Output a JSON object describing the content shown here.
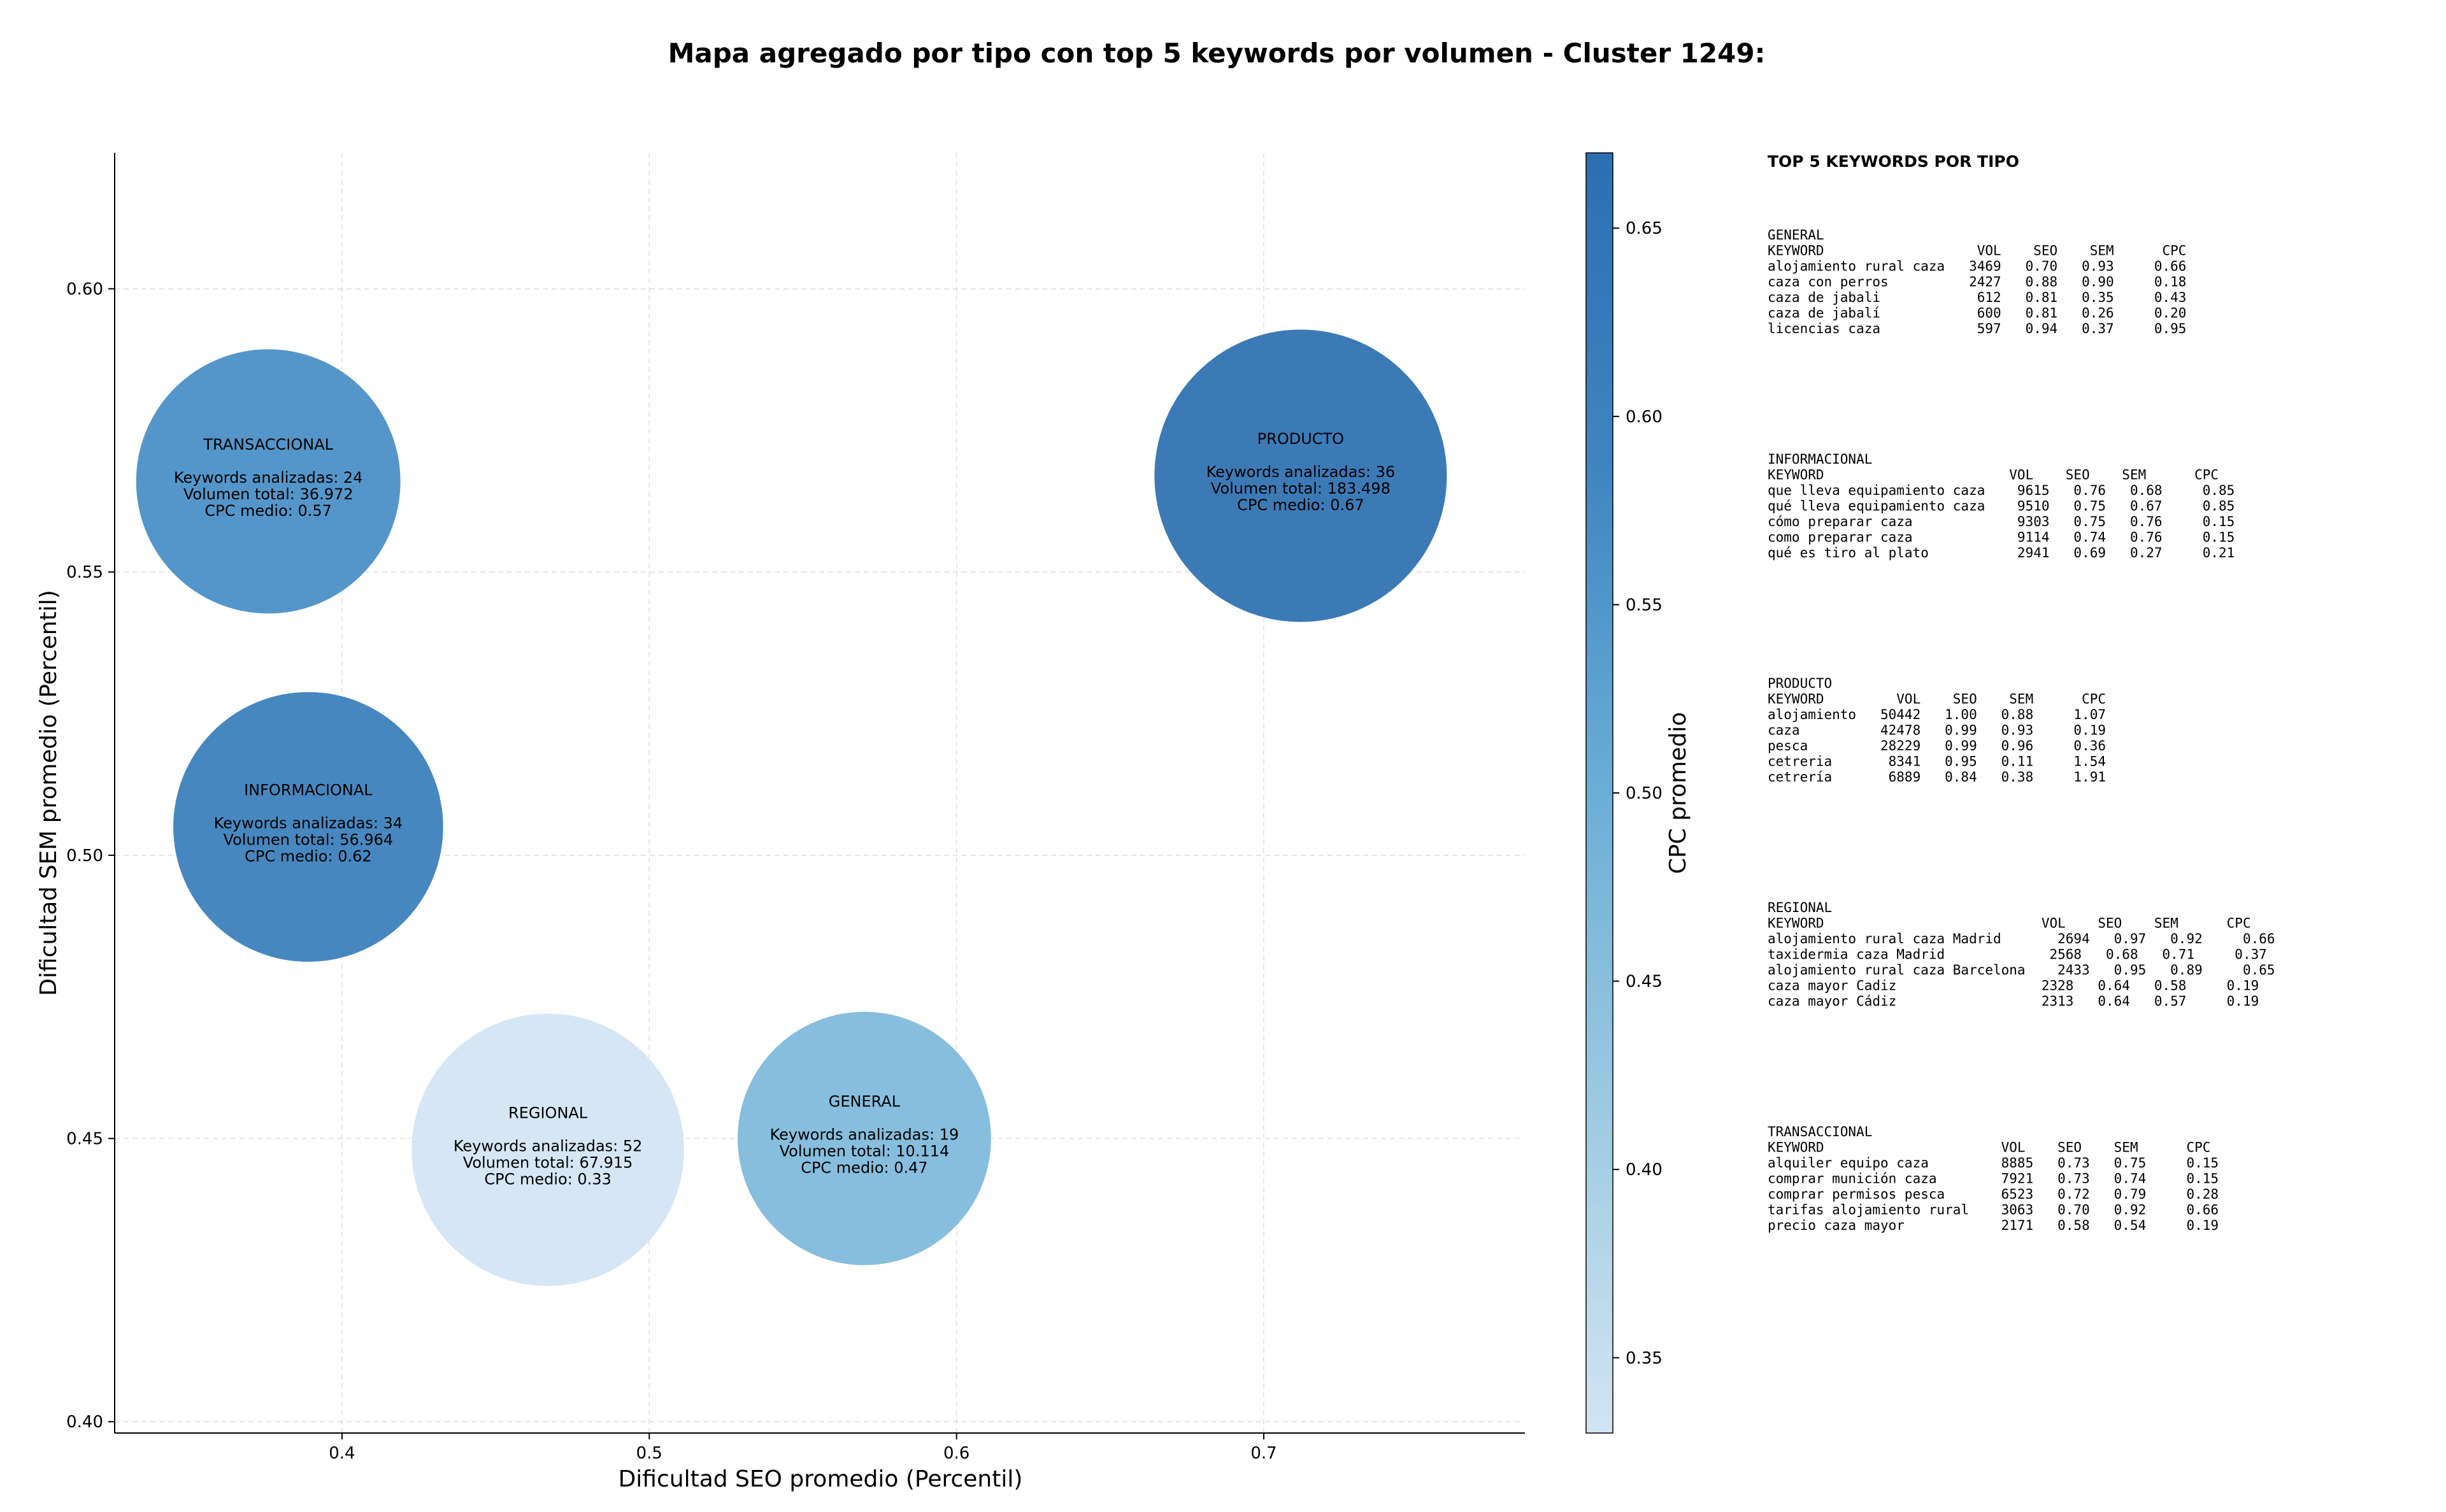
{
  "chart_data": {
    "type": "scatter",
    "title": "Mapa agregado por tipo con top 5 keywords por volumen - Cluster 1249:",
    "xlabel": "Dificultad SEO promedio (Percentil)",
    "ylabel": "Dificultad SEM promedio (Percentil)",
    "xlim": [
      0.326,
      0.785
    ],
    "ylim": [
      0.398,
      0.624
    ],
    "xticks": [
      0.4,
      0.5,
      0.6,
      0.7
    ],
    "xtick_labels": [
      "0.4",
      "0.5",
      "0.6",
      "0.7"
    ],
    "yticks": [
      0.4,
      0.45,
      0.5,
      0.55,
      0.6
    ],
    "ytick_labels": [
      "0.40",
      "0.45",
      "0.50",
      "0.55",
      "0.60"
    ],
    "grid": true,
    "colorbar": {
      "label": "CPC promedio",
      "min": 0.33,
      "max": 0.67,
      "ticks": [
        0.35,
        0.4,
        0.45,
        0.5,
        0.55,
        0.6,
        0.65
      ],
      "tick_labels": [
        "0.35",
        "0.40",
        "0.45",
        "0.50",
        "0.55",
        "0.60",
        "0.65"
      ],
      "colors": [
        "#d3e4f3",
        "#9ecae1",
        "#6baed6",
        "#3f86c1",
        "#2b6fb0"
      ]
    },
    "points": [
      {
        "name": "TRANSACCIONAL",
        "x": 0.376,
        "y": 0.566,
        "keywords": 24,
        "volume": 36972,
        "cpc": 0.57,
        "lines": [
          "Keywords analizadas: 24",
          "Volumen total: 36.972",
          "CPC medio: 0.57"
        ]
      },
      {
        "name": "PRODUCTO",
        "x": 0.712,
        "y": 0.567,
        "keywords": 36,
        "volume": 183498,
        "cpc": 0.67,
        "lines": [
          "Keywords analizadas: 36",
          "Volumen total: 183.498",
          "CPC medio: 0.67"
        ]
      },
      {
        "name": "INFORMACIONAL",
        "x": 0.389,
        "y": 0.505,
        "keywords": 34,
        "volume": 56964,
        "cpc": 0.62,
        "lines": [
          "Keywords analizadas: 34",
          "Volumen total: 56.964",
          "CPC medio: 0.62"
        ]
      },
      {
        "name": "REGIONAL",
        "x": 0.467,
        "y": 0.448,
        "keywords": 52,
        "volume": 67915,
        "cpc": 0.33,
        "lines": [
          "Keywords analizadas: 52",
          "Volumen total: 67.915",
          "CPC medio: 0.33"
        ]
      },
      {
        "name": "GENERAL",
        "x": 0.57,
        "y": 0.45,
        "keywords": 19,
        "volume": 10114,
        "cpc": 0.47,
        "lines": [
          "Keywords analizadas: 19",
          "Volumen total: 10.114",
          "CPC medio: 0.47"
        ]
      }
    ],
    "annotation_panel": {
      "title": "TOP 5 KEYWORDS POR TIPO",
      "blocks": [
        {
          "type": "GENERAL",
          "lines": [
            "GENERAL",
            "KEYWORD                   VOL    SEO    SEM      CPC",
            "alojamiento rural caza   3469   0.70   0.93     0.66",
            "caza con perros          2427   0.88   0.90     0.18",
            "caza de jabali            612   0.81   0.35     0.43",
            "caza de jabalí            600   0.81   0.26     0.20",
            "licencias caza            597   0.94   0.37     0.95"
          ]
        },
        {
          "type": "INFORMACIONAL",
          "lines": [
            "INFORMACIONAL",
            "KEYWORD                       VOL    SEO    SEM      CPC",
            "que lleva equipamiento caza    9615   0.76   0.68     0.85",
            "qué lleva equipamiento caza    9510   0.75   0.67     0.85",
            "cómo preparar caza             9303   0.75   0.76     0.15",
            "como preparar caza             9114   0.74   0.76     0.15",
            "qué es tiro al plato           2941   0.69   0.27     0.21"
          ]
        },
        {
          "type": "PRODUCTO",
          "lines": [
            "PRODUCTO",
            "KEYWORD         VOL    SEO    SEM      CPC",
            "alojamiento   50442   1.00   0.88     1.07",
            "caza          42478   0.99   0.93     0.19",
            "pesca         28229   0.99   0.96     0.36",
            "cetreria       8341   0.95   0.11     1.54",
            "cetrería       6889   0.84   0.38     1.91"
          ]
        },
        {
          "type": "REGIONAL",
          "lines": [
            "REGIONAL",
            "KEYWORD                           VOL    SEO    SEM      CPC",
            "alojamiento rural caza Madrid       2694   0.97   0.92     0.66",
            "taxidermia caza Madrid             2568   0.68   0.71     0.37",
            "alojamiento rural caza Barcelona    2433   0.95   0.89     0.65",
            "caza mayor Cadiz                  2328   0.64   0.58     0.19",
            "caza mayor Cádiz                  2313   0.64   0.57     0.19"
          ]
        },
        {
          "type": "TRANSACCIONAL",
          "lines": [
            "TRANSACCIONAL",
            "KEYWORD                      VOL    SEO    SEM      CPC",
            "alquiler equipo caza         8885   0.73   0.75     0.15",
            "comprar munición caza        7921   0.73   0.74     0.15",
            "comprar permisos pesca       6523   0.72   0.79     0.28",
            "tarifas alojamiento rural    3063   0.70   0.92     0.66",
            "precio caza mayor            2171   0.58   0.54     0.19"
          ]
        }
      ]
    }
  }
}
